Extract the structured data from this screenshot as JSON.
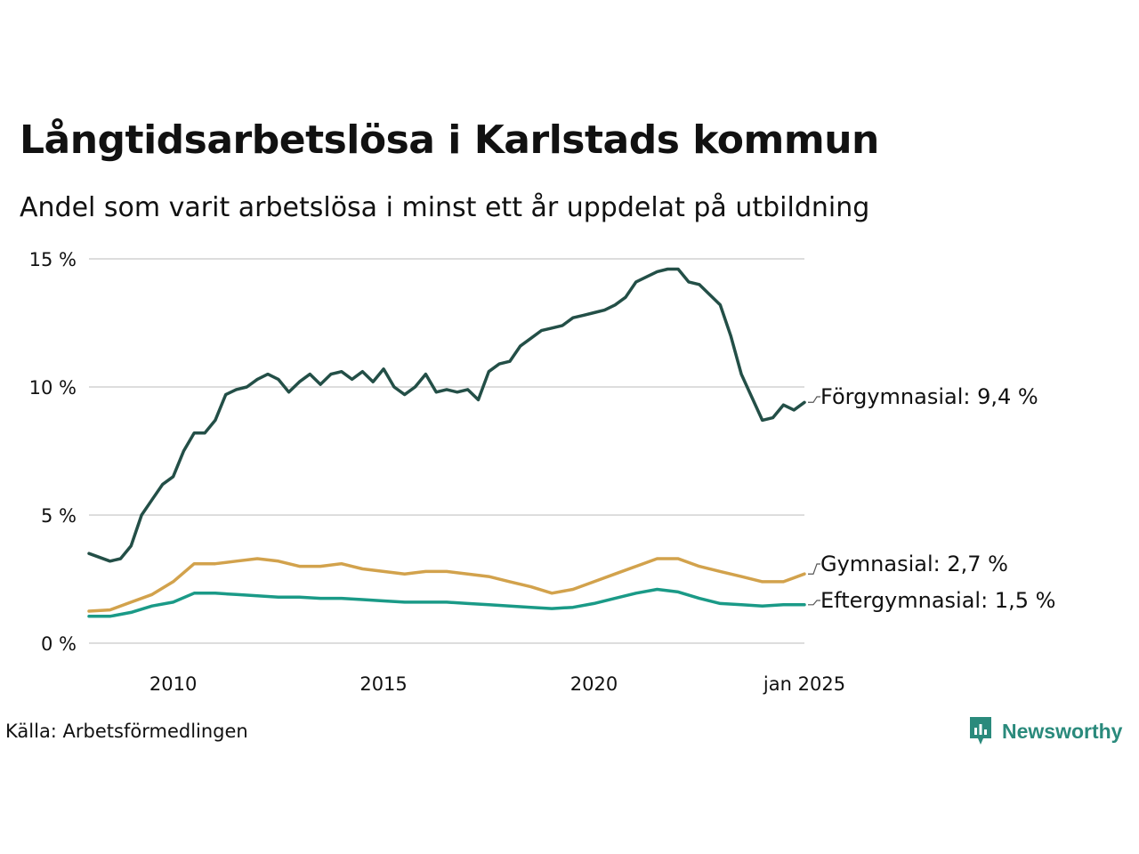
{
  "title": "Långtidsarbetslösa i Karlstads kommun",
  "subtitle": "Andel som varit arbetslösa i minst ett år uppdelat på utbildning",
  "source": "Källa: Arbetsförmedlingen",
  "brand": "Newsworthy",
  "colors": {
    "forgymnasial": "#234f47",
    "gymnasial": "#d2a24c",
    "eftergymnasial": "#1a9a87",
    "grid": "#dddddd",
    "brand": "#2a8a7c"
  },
  "chart_data": {
    "type": "line",
    "title": "Långtidsarbetslösa i Karlstads kommun",
    "subtitle": "Andel som varit arbetslösa i minst ett år uppdelat på utbildning",
    "xlabel": "",
    "ylabel": "",
    "xlim": [
      2008.0,
      2025.0
    ],
    "ylim": [
      0,
      15
    ],
    "y_ticks": [
      0,
      5,
      10,
      15
    ],
    "y_tick_labels": [
      "0 %",
      "5 %",
      "10 %",
      "15 %"
    ],
    "x_ticks": [
      2010.0,
      2015.0,
      2020.0,
      2025.0
    ],
    "x_tick_labels": [
      "2010",
      "2015",
      "2020",
      "jan 2025"
    ],
    "grid": true,
    "series": [
      {
        "name": "Förgymnasial",
        "end_label": "Förgymnasial: 9,4 %",
        "color": "#234f47",
        "x": [
          2008.0,
          2008.5,
          2008.75,
          2009.0,
          2009.25,
          2009.5,
          2009.75,
          2010.0,
          2010.25,
          2010.5,
          2010.75,
          2011.0,
          2011.25,
          2011.5,
          2011.75,
          2012.0,
          2012.25,
          2012.5,
          2012.75,
          2013.0,
          2013.25,
          2013.5,
          2013.75,
          2014.0,
          2014.25,
          2014.5,
          2014.75,
          2015.0,
          2015.25,
          2015.5,
          2015.75,
          2016.0,
          2016.25,
          2016.5,
          2016.75,
          2017.0,
          2017.25,
          2017.5,
          2017.75,
          2018.0,
          2018.25,
          2018.5,
          2018.75,
          2019.0,
          2019.25,
          2019.5,
          2019.75,
          2020.0,
          2020.25,
          2020.5,
          2020.75,
          2021.0,
          2021.25,
          2021.5,
          2021.75,
          2022.0,
          2022.25,
          2022.5,
          2022.75,
          2023.0,
          2023.25,
          2023.5,
          2023.75,
          2024.0,
          2024.25,
          2024.5,
          2024.75,
          2025.0
        ],
        "y": [
          3.5,
          3.2,
          3.3,
          3.8,
          5.0,
          5.6,
          6.2,
          6.5,
          7.5,
          8.2,
          8.2,
          8.7,
          9.7,
          9.9,
          10.0,
          10.3,
          10.5,
          10.3,
          9.8,
          10.2,
          10.5,
          10.1,
          10.5,
          10.6,
          10.3,
          10.6,
          10.2,
          10.7,
          10.0,
          9.7,
          10.0,
          10.5,
          9.8,
          9.9,
          9.8,
          9.9,
          9.5,
          10.6,
          10.9,
          11.0,
          11.6,
          11.9,
          12.2,
          12.3,
          12.4,
          12.7,
          12.8,
          12.9,
          13.0,
          13.2,
          13.5,
          14.1,
          14.3,
          14.5,
          14.6,
          14.6,
          14.1,
          14.0,
          13.6,
          13.2,
          12.0,
          10.5,
          9.6,
          8.7,
          8.8,
          9.3,
          9.1,
          9.4
        ]
      },
      {
        "name": "Gymnasial",
        "end_label": "Gymnasial: 2,7 %",
        "color": "#d2a24c",
        "x": [
          2008.0,
          2008.5,
          2009.0,
          2009.5,
          2010.0,
          2010.5,
          2011.0,
          2011.5,
          2012.0,
          2012.5,
          2013.0,
          2013.5,
          2014.0,
          2014.5,
          2015.0,
          2015.5,
          2016.0,
          2016.5,
          2017.0,
          2017.5,
          2018.0,
          2018.5,
          2019.0,
          2019.5,
          2020.0,
          2020.5,
          2021.0,
          2021.5,
          2022.0,
          2022.5,
          2023.0,
          2023.5,
          2024.0,
          2024.5,
          2025.0
        ],
        "y": [
          1.25,
          1.3,
          1.6,
          1.9,
          2.4,
          3.1,
          3.1,
          3.2,
          3.3,
          3.2,
          3.0,
          3.0,
          3.1,
          2.9,
          2.8,
          2.7,
          2.8,
          2.8,
          2.7,
          2.6,
          2.4,
          2.2,
          1.95,
          2.1,
          2.4,
          2.7,
          3.0,
          3.3,
          3.3,
          3.0,
          2.8,
          2.6,
          2.4,
          2.4,
          2.7
        ]
      },
      {
        "name": "Eftergymnasial",
        "end_label": "Eftergymnasial: 1,5 %",
        "color": "#1a9a87",
        "x": [
          2008.0,
          2008.5,
          2009.0,
          2009.5,
          2010.0,
          2010.5,
          2011.0,
          2011.5,
          2012.0,
          2012.5,
          2013.0,
          2013.5,
          2014.0,
          2014.5,
          2015.0,
          2015.5,
          2016.0,
          2016.5,
          2017.0,
          2017.5,
          2018.0,
          2018.5,
          2019.0,
          2019.5,
          2020.0,
          2020.5,
          2021.0,
          2021.5,
          2022.0,
          2022.5,
          2023.0,
          2023.5,
          2024.0,
          2024.5,
          2025.0
        ],
        "y": [
          1.05,
          1.05,
          1.2,
          1.45,
          1.6,
          1.95,
          1.95,
          1.9,
          1.85,
          1.8,
          1.8,
          1.75,
          1.75,
          1.7,
          1.65,
          1.6,
          1.6,
          1.6,
          1.55,
          1.5,
          1.45,
          1.4,
          1.35,
          1.4,
          1.55,
          1.75,
          1.95,
          2.1,
          2.0,
          1.75,
          1.55,
          1.5,
          1.45,
          1.5,
          1.5
        ]
      }
    ]
  }
}
